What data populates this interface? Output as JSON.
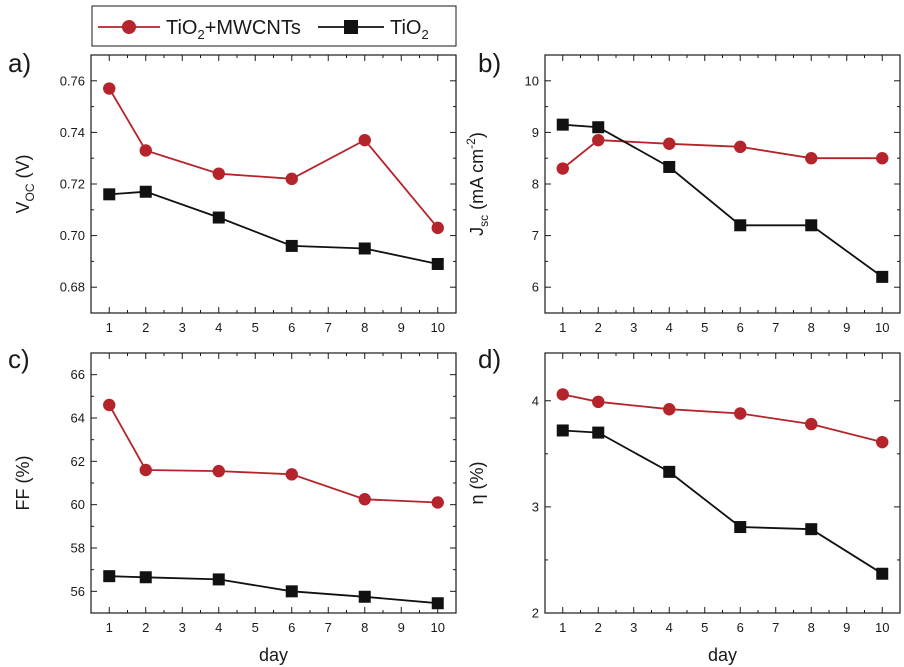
{
  "colors": {
    "tio2_mwcnt": "#b5242a",
    "tio2": "#111111"
  },
  "legend": {
    "entries": [
      {
        "base": "TiO",
        "sub": "2",
        "suffix": "+MWCNTs",
        "marker": "circle",
        "color": "#b5242a"
      },
      {
        "base": "TiO",
        "sub": "2",
        "suffix": "",
        "marker": "square",
        "color": "#111111"
      }
    ]
  },
  "chart_data": [
    {
      "panel": "a)",
      "type": "line",
      "ylabel": {
        "base": "V",
        "sub": "OC",
        "suffix": " (V)"
      },
      "xlabel": "",
      "xlim": [
        0.5,
        10.5
      ],
      "ylim": [
        0.67,
        0.77
      ],
      "yticks": [
        "0.68",
        "0.70",
        "0.72",
        "0.74",
        "0.76"
      ],
      "xticks": [
        "1",
        "2",
        "3",
        "4",
        "5",
        "6",
        "7",
        "8",
        "9",
        "10"
      ],
      "series": [
        {
          "key": "tio2_mwcnt",
          "marker": "circle",
          "x": [
            1,
            2,
            4,
            6,
            8,
            10
          ],
          "y": [
            0.757,
            0.733,
            0.724,
            0.722,
            0.737,
            0.703
          ]
        },
        {
          "key": "tio2",
          "marker": "square",
          "x": [
            1,
            2,
            4,
            6,
            8,
            10
          ],
          "y": [
            0.716,
            0.717,
            0.707,
            0.696,
            0.695,
            0.689
          ]
        }
      ]
    },
    {
      "panel": "b)",
      "type": "line",
      "ylabel": {
        "base": "J",
        "sub": "sc",
        "suffix": " (mA cm",
        "sup": "-2",
        "suffix2": ")"
      },
      "xlabel": "",
      "xlim": [
        0.5,
        10.5
      ],
      "ylim": [
        5.5,
        10.5
      ],
      "yticks": [
        "6",
        "7",
        "8",
        "9",
        "10"
      ],
      "xticks": [
        "1",
        "2",
        "3",
        "4",
        "5",
        "6",
        "7",
        "8",
        "9",
        "10"
      ],
      "series": [
        {
          "key": "tio2_mwcnt",
          "marker": "circle",
          "x": [
            1,
            2,
            4,
            6,
            8,
            10
          ],
          "y": [
            8.3,
            8.85,
            8.78,
            8.72,
            8.5,
            8.5
          ]
        },
        {
          "key": "tio2",
          "marker": "square",
          "x": [
            1,
            2,
            4,
            6,
            8,
            10
          ],
          "y": [
            9.15,
            9.1,
            8.33,
            7.2,
            7.2,
            6.2
          ]
        }
      ]
    },
    {
      "panel": "c)",
      "type": "line",
      "ylabel": {
        "base": "FF (%)"
      },
      "xlabel": "day",
      "xlim": [
        0.5,
        10.5
      ],
      "ylim": [
        55,
        67
      ],
      "yticks": [
        "56",
        "58",
        "60",
        "62",
        "64",
        "66"
      ],
      "xticks": [
        "1",
        "2",
        "3",
        "4",
        "5",
        "6",
        "7",
        "8",
        "9",
        "10"
      ],
      "series": [
        {
          "key": "tio2_mwcnt",
          "marker": "circle",
          "x": [
            1,
            2,
            4,
            6,
            8,
            10
          ],
          "y": [
            64.6,
            61.6,
            61.55,
            61.4,
            60.25,
            60.1
          ]
        },
        {
          "key": "tio2",
          "marker": "square",
          "x": [
            1,
            2,
            4,
            6,
            8,
            10
          ],
          "y": [
            56.7,
            56.65,
            56.55,
            56.0,
            55.75,
            55.45
          ]
        }
      ]
    },
    {
      "panel": "d)",
      "type": "line",
      "ylabel": {
        "base": "η (%)"
      },
      "xlabel": "day",
      "xlim": [
        0.5,
        10.5
      ],
      "ylim": [
        2,
        4.45
      ],
      "yticks": [
        "2",
        "3",
        "4"
      ],
      "xticks": [
        "1",
        "2",
        "3",
        "4",
        "5",
        "6",
        "7",
        "8",
        "9",
        "10"
      ],
      "series": [
        {
          "key": "tio2_mwcnt",
          "marker": "circle",
          "x": [
            1,
            2,
            4,
            6,
            8,
            10
          ],
          "y": [
            4.06,
            3.99,
            3.92,
            3.88,
            3.78,
            3.61
          ]
        },
        {
          "key": "tio2",
          "marker": "square",
          "x": [
            1,
            2,
            4,
            6,
            8,
            10
          ],
          "y": [
            3.72,
            3.7,
            3.33,
            2.81,
            2.79,
            2.37
          ]
        }
      ]
    }
  ]
}
